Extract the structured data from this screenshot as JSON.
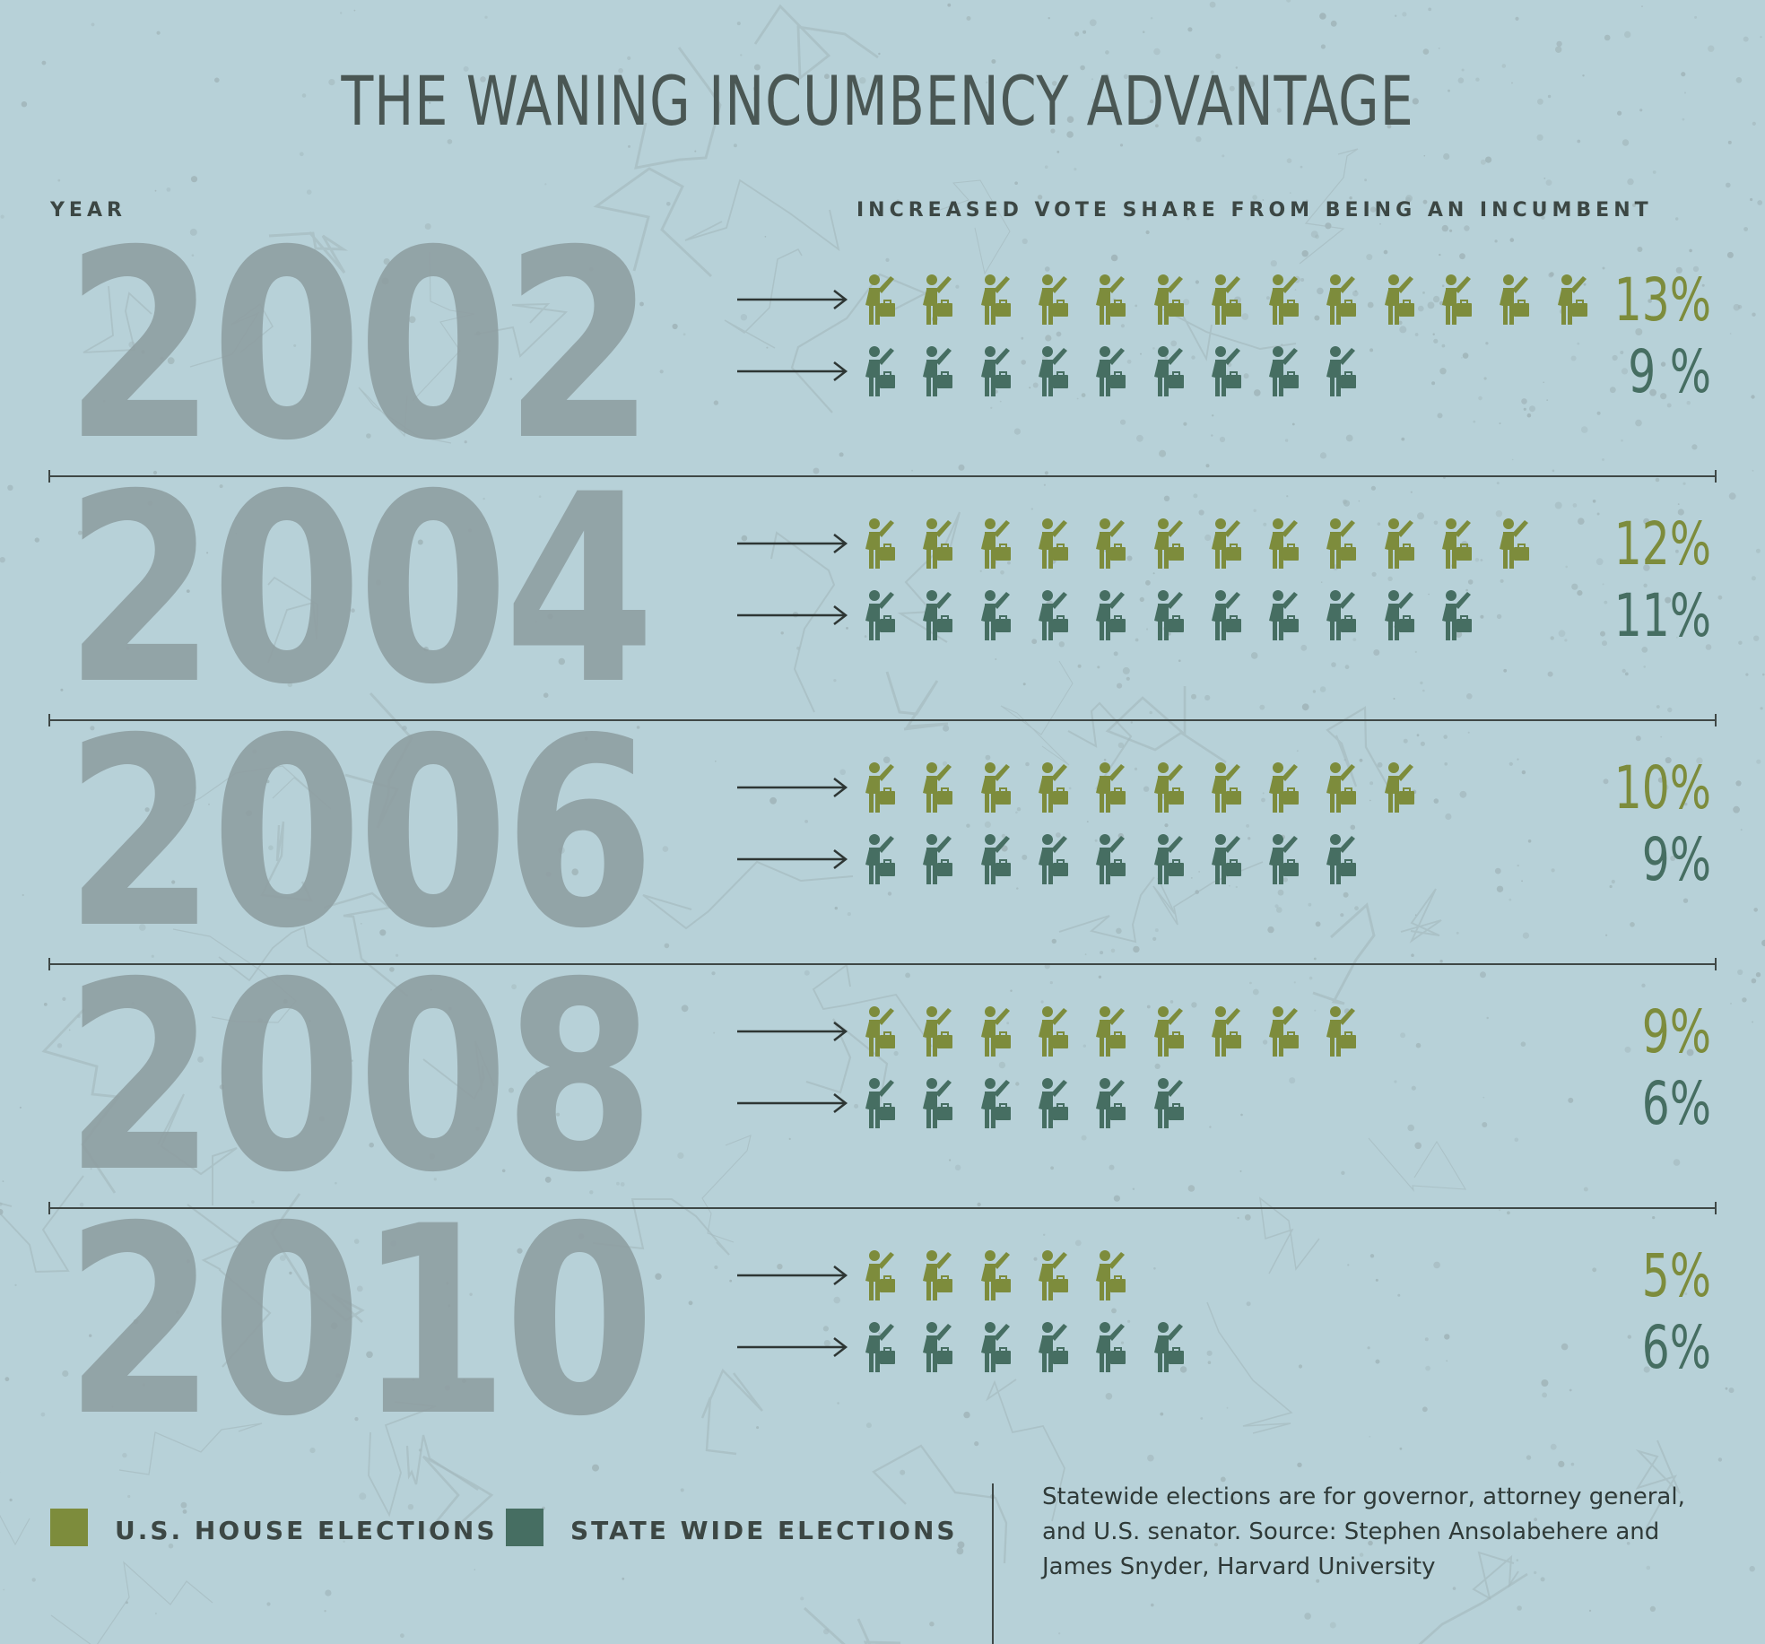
{
  "title": "THE WANING INCUMBENCY ADVANTAGE",
  "headers": {
    "year": "YEAR",
    "share": "INCREASED VOTE SHARE FROM BEING AN INCUMBENT"
  },
  "colors": {
    "background": "#b7d1d8",
    "house": "#7d8c3c",
    "statewide": "#466e62",
    "year_text": "#8e9ea1",
    "dark_text": "#3c4744"
  },
  "icon_name": "incumbent-with-briefcase-icon",
  "chart_data": {
    "type": "pictograph",
    "title": "THE WANING INCUMBENCY ADVANTAGE",
    "xlabel": "INCREASED VOTE SHARE FROM BEING AN INCUMBENT",
    "ylabel": "YEAR",
    "unit": "%",
    "categories": [
      "2002",
      "2004",
      "2006",
      "2008",
      "2010"
    ],
    "series": [
      {
        "name": "U.S. HOUSE ELECTIONS",
        "color": "#7d8c3c",
        "values": [
          13,
          12,
          10,
          9,
          5
        ],
        "labels": [
          "13%",
          "12%",
          "10%",
          "9%",
          "5%"
        ]
      },
      {
        "name": "STATE WIDE ELECTIONS",
        "color": "#466e62",
        "values": [
          9,
          11,
          9,
          6,
          6
        ],
        "labels": [
          "9 %",
          "11%",
          "9%",
          "6%",
          "6%"
        ]
      }
    ]
  },
  "legend": [
    {
      "label": "U.S. HOUSE ELECTIONS",
      "color": "#7d8c3c"
    },
    {
      "label": "STATE WIDE ELECTIONS",
      "color": "#466e62"
    }
  ],
  "note": "Statewide elections are for governor, attorney general, and U.S. senator. Source: Stephen Ansolabehere and James Snyder, Harvard University"
}
